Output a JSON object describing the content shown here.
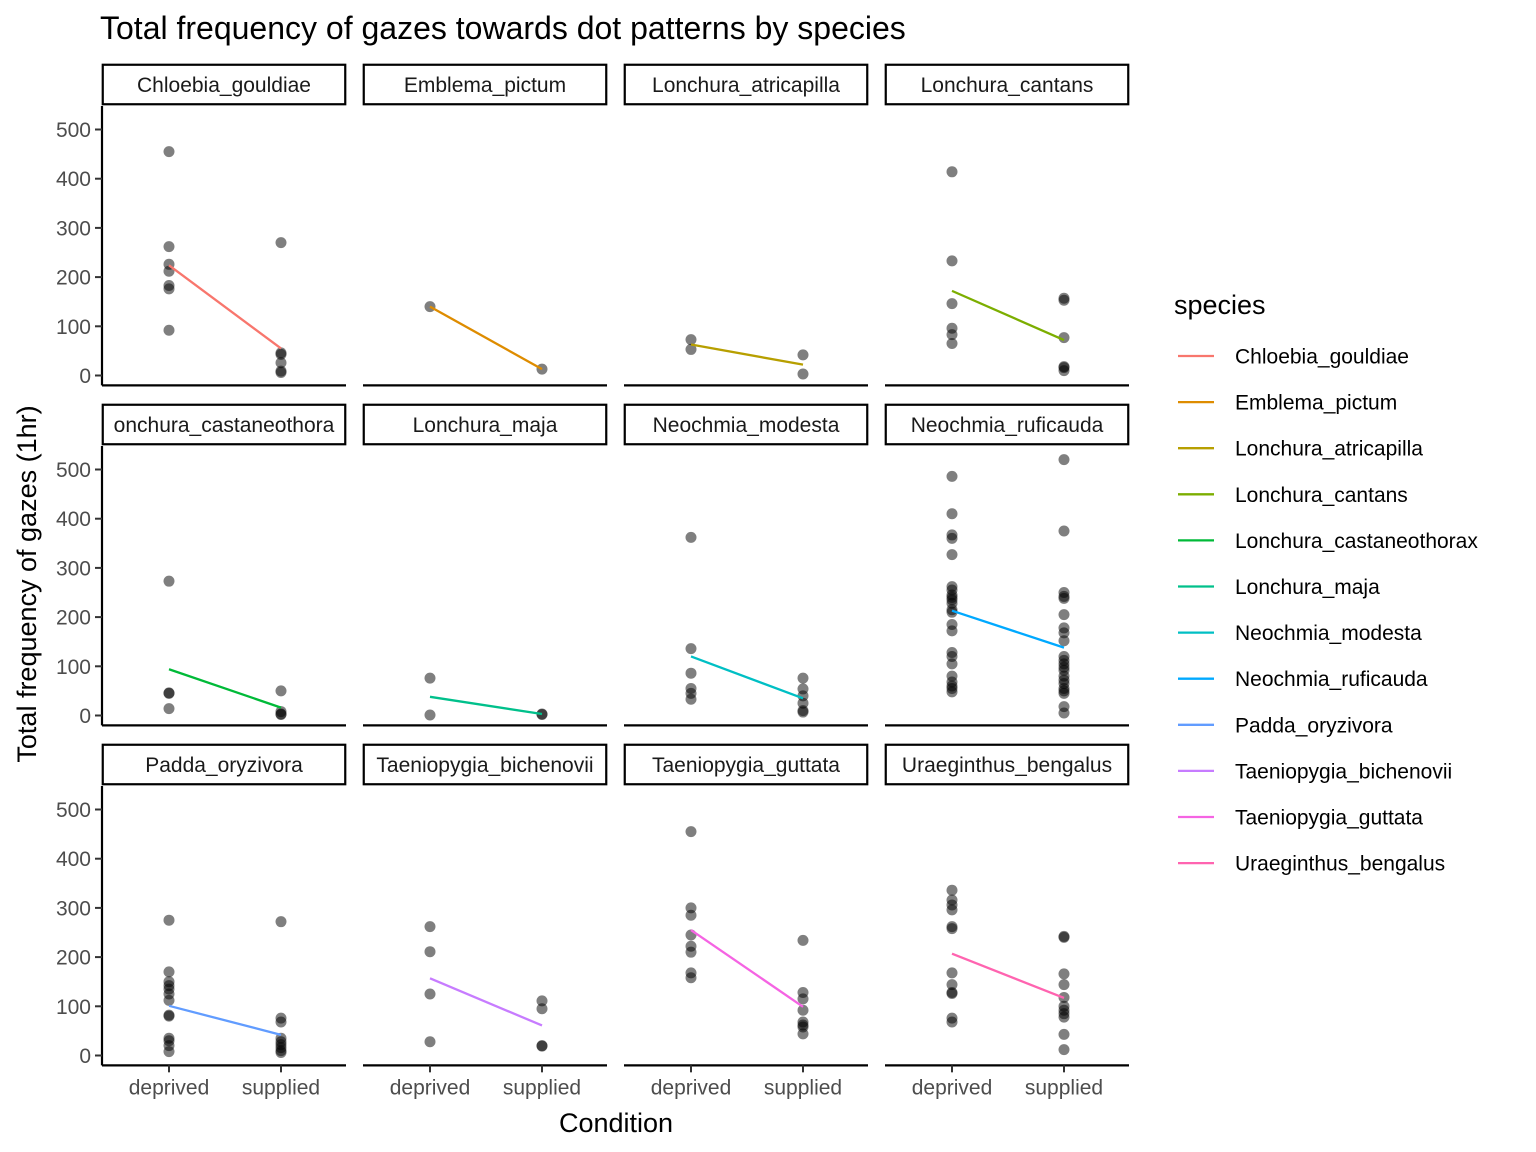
{
  "chart_data": {
    "type": "scatter",
    "title": "Total frequency of gazes towards dot patterns by species",
    "xlabel": "Condition",
    "ylabel": "Total frequency of gazes (1hr)",
    "categories": [
      "deprived",
      "supplied"
    ],
    "yticks": [
      0,
      100,
      200,
      300,
      400,
      500
    ],
    "ylim": [
      -20,
      545
    ],
    "grid": false,
    "legend": {
      "title": "species",
      "placement": "right"
    },
    "panels": [
      {
        "name": "Chloebia_gouldiae",
        "color": "#F8766D",
        "points": {
          "deprived": [
            455,
            262,
            226,
            212,
            183,
            176,
            92
          ],
          "supplied": [
            270,
            46,
            43,
            26,
            9,
            6
          ]
        },
        "mean": [
          224,
          55
        ]
      },
      {
        "name": "Emblema_pictum",
        "color": "#DE8C00",
        "points": {
          "deprived": [
            140
          ],
          "supplied": [
            13
          ]
        },
        "mean": [
          140,
          13
        ]
      },
      {
        "name": "Lonchura_atricapilla",
        "color": "#B79F00",
        "points": {
          "deprived": [
            73,
            53
          ],
          "supplied": [
            42,
            3
          ]
        },
        "mean": [
          63,
          22
        ]
      },
      {
        "name": "Lonchura_cantans",
        "color": "#7CAE00",
        "points": {
          "deprived": [
            414,
            233,
            146,
            96,
            83,
            65
          ],
          "supplied": [
            157,
            153,
            77,
            18,
            16,
            10
          ]
        },
        "mean": [
          172,
          72
        ]
      },
      {
        "name": "Lonchura_castaneothorax",
        "color": "#00BA38",
        "points": {
          "deprived": [
            273,
            46,
            45,
            14
          ],
          "supplied": [
            50,
            8,
            3,
            2
          ]
        },
        "mean": [
          94,
          16
        ]
      },
      {
        "name": "Lonchura_maja",
        "color": "#00C08B",
        "points": {
          "deprived": [
            76,
            1
          ],
          "supplied": [
            3,
            2
          ]
        },
        "mean": [
          38,
          3
        ]
      },
      {
        "name": "Neochmia_modesta",
        "color": "#00BFC4",
        "points": {
          "deprived": [
            362,
            136,
            86,
            55,
            45,
            33
          ],
          "supplied": [
            76,
            54,
            40,
            25,
            10,
            7
          ]
        },
        "mean": [
          120,
          35
        ]
      },
      {
        "name": "Neochmia_ruficauda",
        "color": "#00A9FF",
        "points": {
          "deprived": [
            486,
            410,
            367,
            360,
            327,
            262,
            255,
            245,
            240,
            235,
            228,
            215,
            210,
            185,
            172,
            128,
            120,
            105,
            80,
            68,
            60,
            55,
            48
          ],
          "supplied": [
            520,
            375,
            250,
            242,
            238,
            205,
            178,
            168,
            152,
            120,
            112,
            105,
            98,
            92,
            80,
            72,
            65,
            55,
            50,
            45,
            18,
            5
          ]
        },
        "mean": [
          213,
          138
        ]
      },
      {
        "name": "Padda_oryzivora",
        "color": "#619CFF",
        "points": {
          "deprived": [
            275,
            170,
            150,
            142,
            135,
            125,
            112,
            82,
            80,
            35,
            30,
            20,
            8
          ],
          "supplied": [
            272,
            76,
            68,
            35,
            28,
            22,
            16,
            10,
            6
          ]
        },
        "mean": [
          101,
          42
        ]
      },
      {
        "name": "Taeniopygia_bichenovii",
        "color": "#C77CFF",
        "points": {
          "deprived": [
            262,
            211,
            125,
            28
          ],
          "supplied": [
            111,
            95,
            20,
            19
          ]
        },
        "mean": [
          157,
          61
        ]
      },
      {
        "name": "Taeniopygia_guttata",
        "color": "#F564E3",
        "points": {
          "deprived": [
            455,
            300,
            285,
            245,
            222,
            210,
            168,
            158
          ],
          "supplied": [
            234,
            128,
            115,
            92,
            68,
            62,
            58,
            44
          ]
        },
        "mean": [
          255,
          99
        ]
      },
      {
        "name": "Uraeginthus_bengalus",
        "color": "#FF64B0",
        "points": {
          "deprived": [
            336,
            316,
            306,
            296,
            262,
            258,
            168,
            144,
            128,
            126,
            76,
            68
          ],
          "supplied": [
            242,
            240,
            166,
            144,
            118,
            100,
            92,
            85,
            78,
            43,
            12
          ]
        },
        "mean": [
          207,
          117
        ]
      }
    ],
    "strip_labels": [
      "Chloebia_gouldiae",
      "Emblema_pictum",
      "Lonchura_atricapilla",
      "Lonchura_cantans",
      "onchura_castaneothora",
      "Lonchura_maja",
      "Neochmia_modesta",
      "Neochmia_ruficauda",
      "Padda_oryzivora",
      "Taeniopygia_bichenovii",
      "Taeniopygia_guttata",
      "Uraeginthus_bengalus"
    ]
  }
}
